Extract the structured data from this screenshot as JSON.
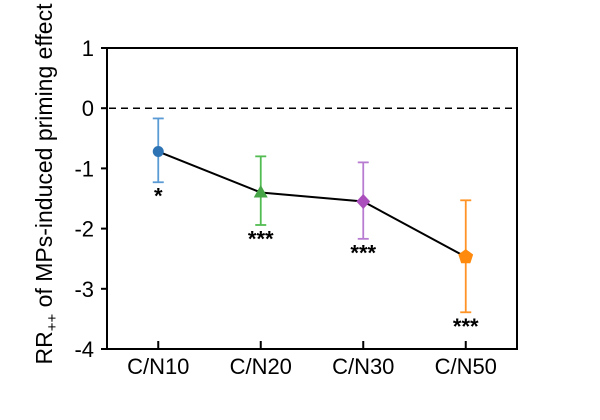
{
  "chart_data": {
    "type": "line",
    "title": "",
    "xlabel": "",
    "ylabel": {
      "prefix": "RR",
      "subscript": "++",
      "rest": " of MPs-induced priming effect"
    },
    "categories": [
      "C/N10",
      "C/N20",
      "C/N30",
      "C/N50"
    ],
    "ylim": [
      -4,
      1
    ],
    "yticks": [
      1,
      0,
      -1,
      -2,
      -3,
      -4
    ],
    "reference_line": 0,
    "grid": false,
    "legend": false,
    "line_color": "#000000",
    "series": [
      {
        "name": "MPs-induced priming effect",
        "points": [
          {
            "category": "C/N10",
            "mean": -0.72,
            "upper": -0.17,
            "lower": -1.23,
            "significance": "*",
            "marker": "circle",
            "marker_color": "#2E74B5",
            "bar_color": "#5B9BD5"
          },
          {
            "category": "C/N20",
            "mean": -1.4,
            "upper": -0.8,
            "lower": -1.94,
            "significance": "***",
            "marker": "triangle",
            "marker_color": "#46A546",
            "bar_color": "#52BC52"
          },
          {
            "category": "C/N30",
            "mean": -1.55,
            "upper": -0.9,
            "lower": -2.17,
            "significance": "***",
            "marker": "diamond",
            "marker_color": "#AB4FBC",
            "bar_color": "#B77CD1"
          },
          {
            "category": "C/N50",
            "mean": -2.47,
            "upper": -1.53,
            "lower": -3.39,
            "significance": "***",
            "marker": "pentagon",
            "marker_color": "#FF8A0D",
            "bar_color": "#FF9326"
          }
        ]
      }
    ]
  }
}
